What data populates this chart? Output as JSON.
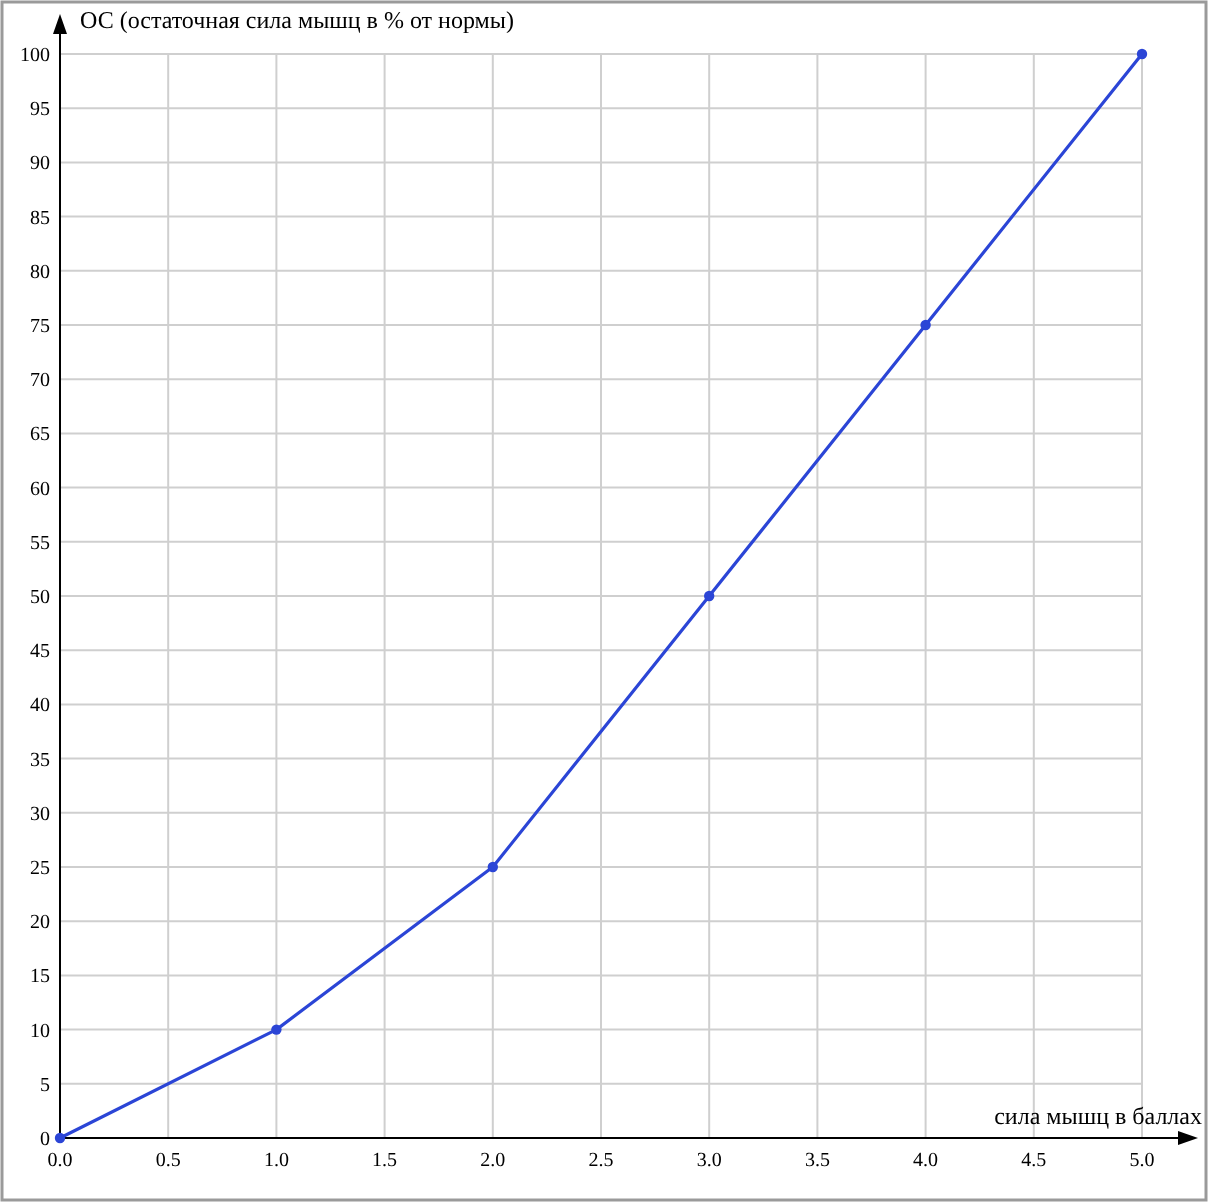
{
  "chart_data": {
    "type": "line",
    "xlabel": "сила мышц в баллах",
    "ylabel": "ОС (остаточная сила мышц в % от нормы)",
    "x": [
      0,
      1,
      2,
      3,
      4,
      5
    ],
    "series": [
      {
        "color": "#2b45d6",
        "values": [
          0,
          10,
          25,
          50,
          75,
          100
        ]
      }
    ],
    "xlim": [
      0,
      5
    ],
    "ylim": [
      0,
      100
    ],
    "xticks": [
      {
        "value": 0,
        "label": "0.0"
      },
      {
        "value": 0.5,
        "label": "0.5"
      },
      {
        "value": 1,
        "label": "1.0"
      },
      {
        "value": 1.5,
        "label": "1.5"
      },
      {
        "value": 2,
        "label": "2.0"
      },
      {
        "value": 2.5,
        "label": "2.5"
      },
      {
        "value": 3,
        "label": "3.0"
      },
      {
        "value": 3.5,
        "label": "3.5"
      },
      {
        "value": 4,
        "label": "4.0"
      },
      {
        "value": 4.5,
        "label": "4.5"
      },
      {
        "value": 5,
        "label": "5.0"
      }
    ],
    "yticks": [
      0,
      5,
      10,
      15,
      20,
      25,
      30,
      35,
      40,
      45,
      50,
      55,
      60,
      65,
      70,
      75,
      80,
      85,
      90,
      95,
      100
    ],
    "grid": true,
    "marker": "circle",
    "line_style": "solid"
  }
}
